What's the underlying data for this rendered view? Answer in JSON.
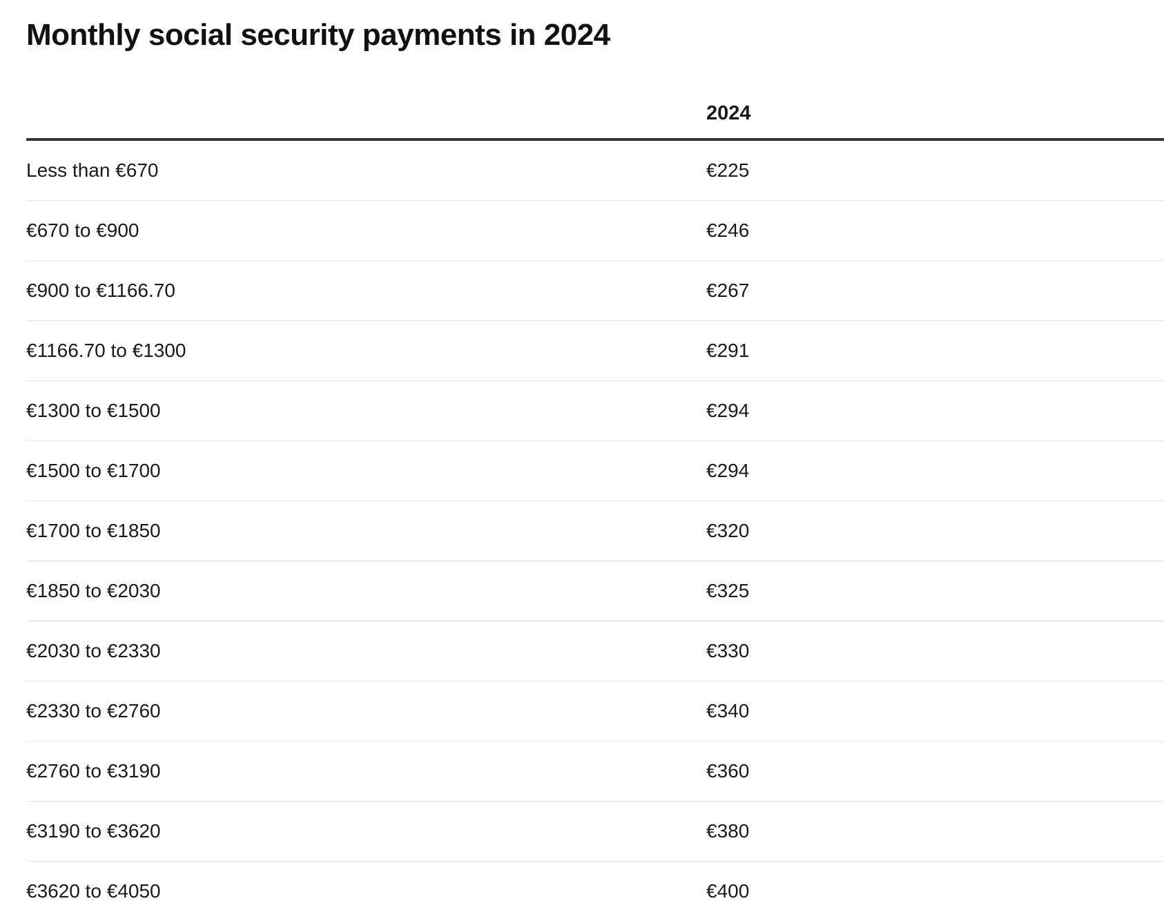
{
  "title": "Monthly social security payments in 2024",
  "chart_data": {
    "type": "table",
    "title": "Monthly social security payments in 2024",
    "columns": [
      "",
      "2024"
    ],
    "rows": [
      {
        "label": "Less than €670",
        "value": "€225"
      },
      {
        "label": "€670 to €900",
        "value": "€246"
      },
      {
        "label": "€900 to €1166.70",
        "value": "€267"
      },
      {
        "label": "€1166.70 to €1300",
        "value": "€291"
      },
      {
        "label": "€1300 to €1500",
        "value": "€294"
      },
      {
        "label": "€1500 to €1700",
        "value": "€294"
      },
      {
        "label": "€1700 to €1850",
        "value": "€320"
      },
      {
        "label": "€1850 to €2030",
        "value": "€325"
      },
      {
        "label": "€2030 to €2330",
        "value": "€330"
      },
      {
        "label": "€2330 to €2760",
        "value": "€340"
      },
      {
        "label": "€2760 to €3190",
        "value": "€360"
      },
      {
        "label": "€3190 to €3620",
        "value": "€380"
      },
      {
        "label": "€3620 to €4050",
        "value": "€400"
      }
    ]
  }
}
